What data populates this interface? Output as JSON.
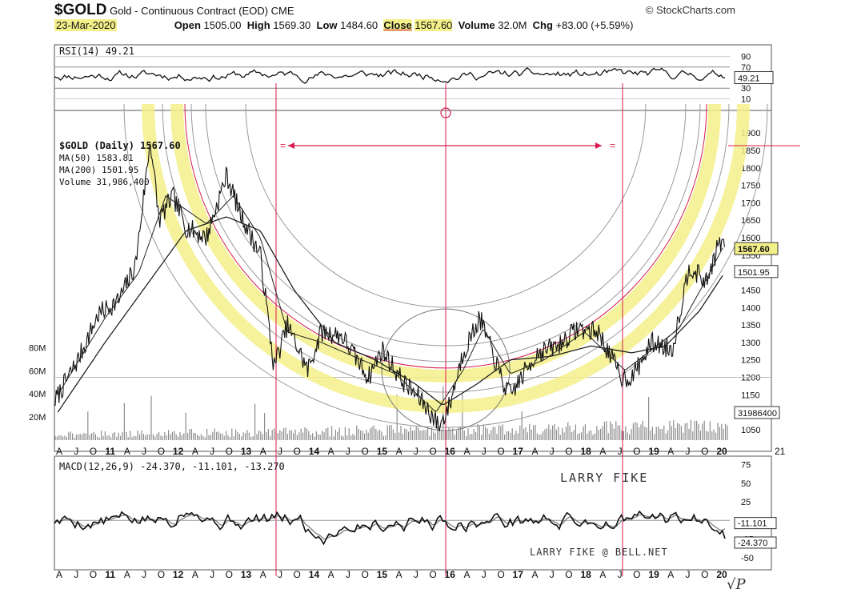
{
  "header": {
    "symbol": "$GOLD",
    "name": "Gold - Continuous Contract (EOD)",
    "exchange": "CME",
    "date": "23-Mar-2020",
    "brand": "© StockCharts.com",
    "open_label": "Open",
    "open_value": "1505.00",
    "high_label": "High",
    "high_value": "1569.30",
    "low_label": "Low",
    "low_value": "1484.60",
    "close_label": "Close",
    "close_value": "1567.60",
    "volume_label": "Volume",
    "volume_value": "32.0M",
    "chg_label": "Chg",
    "chg_value": "+83.00 (+5.59%)"
  },
  "colors": {
    "highlight": "#f3f08a",
    "price": "#111111",
    "annotation_red": "#d81b4a",
    "arc_gray": "#9a9a9a",
    "volume": "#8c8c8c"
  },
  "chart_data": [
    {
      "type": "line",
      "panel": "rsi",
      "legend": "RSI(14) 49.21",
      "last_value_label": "49.21",
      "ylim": [
        0,
        100
      ],
      "ticks": [
        "90",
        "70",
        "30",
        "10"
      ],
      "tick_values": [
        90,
        70,
        30,
        10
      ],
      "x_range": [
        2010.25,
        2020.25
      ],
      "series": [
        {
          "name": "RSI(14)",
          "last": 49.21,
          "mean": 55,
          "amplitude": 17,
          "samples": 330,
          "seed": 11
        }
      ]
    },
    {
      "type": "line",
      "panel": "price",
      "legend": [
        "$GOLD (Daily) 1567.60",
        "MA(50) 1583.81",
        "MA(200) 1501.95",
        "Volume 31,986,400"
      ],
      "last_labels": [
        "1567.60",
        "1501.95",
        "31986400"
      ],
      "ylim": [
        1020,
        1960
      ],
      "ticks": [
        "1900",
        "1850",
        "1800",
        "1750",
        "1700",
        "1650",
        "1600",
        "1550",
        "1500",
        "1450",
        "1400",
        "1350",
        "1300",
        "1250",
        "1200",
        "1150",
        "1100",
        "1050"
      ],
      "tick_values": [
        1900,
        1850,
        1800,
        1750,
        1700,
        1650,
        1600,
        1550,
        1500,
        1450,
        1400,
        1350,
        1300,
        1250,
        1200,
        1150,
        1100,
        1050
      ],
      "volume_ticks": [
        "80M",
        "60M",
        "40M",
        "20M"
      ],
      "volume_tick_values": [
        80,
        60,
        40,
        20
      ],
      "x_range": [
        2010.25,
        2020.25
      ],
      "x_ticks": [
        "A",
        "J",
        "O",
        "11",
        "A",
        "J",
        "O",
        "12",
        "A",
        "J",
        "O",
        "13",
        "A",
        "J",
        "O",
        "14",
        "A",
        "J",
        "O",
        "15",
        "A",
        "J",
        "O",
        "16",
        "A",
        "J",
        "O",
        "17",
        "A",
        "J",
        "O",
        "18",
        "A",
        "J",
        "O",
        "19",
        "A",
        "J",
        "O",
        "20"
      ],
      "series": [
        {
          "name": "$GOLD",
          "x": [
            2010.25,
            2010.6,
            2010.9,
            2011.2,
            2011.45,
            2011.67,
            2011.8,
            2012.0,
            2012.2,
            2012.5,
            2012.8,
            2013.0,
            2013.3,
            2013.5,
            2013.7,
            2014.0,
            2014.2,
            2014.5,
            2014.9,
            2015.1,
            2015.4,
            2015.7,
            2015.95,
            2016.1,
            2016.3,
            2016.55,
            2016.9,
            2017.0,
            2017.4,
            2017.7,
            2018.0,
            2018.3,
            2018.65,
            2018.8,
            2019.1,
            2019.4,
            2019.65,
            2019.9,
            2020.1,
            2020.18
          ],
          "y": [
            1130,
            1250,
            1380,
            1420,
            1520,
            1880,
            1650,
            1720,
            1630,
            1600,
            1780,
            1670,
            1550,
            1230,
            1350,
            1220,
            1330,
            1320,
            1200,
            1280,
            1190,
            1130,
            1060,
            1120,
            1270,
            1370,
            1180,
            1150,
            1270,
            1290,
            1340,
            1330,
            1200,
            1200,
            1300,
            1280,
            1520,
            1470,
            1590,
            1567.6
          ]
        },
        {
          "name": "MA(50)",
          "x": [
            2010.3,
            2011.0,
            2011.5,
            2011.9,
            2012.5,
            2012.9,
            2013.3,
            2013.7,
            2014.2,
            2014.8,
            2015.3,
            2015.9,
            2016.3,
            2016.6,
            2017.0,
            2017.5,
            2018.1,
            2018.7,
            2019.1,
            2019.5,
            2019.9,
            2020.18
          ],
          "y": [
            1150,
            1370,
            1500,
            1720,
            1640,
            1720,
            1600,
            1330,
            1300,
            1250,
            1210,
            1100,
            1220,
            1340,
            1210,
            1250,
            1330,
            1220,
            1280,
            1340,
            1480,
            1583.81
          ]
        },
        {
          "name": "MA(200)",
          "x": [
            2010.3,
            2011.0,
            2011.6,
            2012.2,
            2012.8,
            2013.3,
            2013.8,
            2014.4,
            2015.0,
            2015.6,
            2016.0,
            2016.5,
            2017.0,
            2017.6,
            2018.2,
            2018.8,
            2019.3,
            2019.8,
            2020.18
          ],
          "y": [
            1100,
            1300,
            1460,
            1620,
            1660,
            1620,
            1450,
            1300,
            1250,
            1180,
            1120,
            1180,
            1250,
            1260,
            1290,
            1270,
            1290,
            1390,
            1501.95
          ]
        }
      ]
    },
    {
      "type": "line",
      "panel": "macd",
      "legend": "MACD(12,26,9) -24.370, -11.101, -13.270",
      "last_labels": [
        "-11.101",
        "-24.370"
      ],
      "ylim": [
        -62,
        82
      ],
      "ticks": [
        "75",
        "50",
        "25",
        "0",
        "-25",
        "-50"
      ],
      "tick_values": [
        75,
        50,
        25,
        0,
        -25,
        -50
      ],
      "x_range": [
        2010.25,
        2020.25
      ],
      "x_ticks": [
        "A",
        "J",
        "O",
        "11",
        "A",
        "J",
        "O",
        "12",
        "A",
        "J",
        "O",
        "13",
        "A",
        "J",
        "O",
        "14",
        "A",
        "J",
        "O",
        "15",
        "A",
        "J",
        "O",
        "16",
        "A",
        "J",
        "O",
        "17",
        "A",
        "J",
        "O",
        "18",
        "A",
        "J",
        "O",
        "19",
        "A",
        "J",
        "O",
        "20"
      ],
      "series": [
        {
          "name": "MACD",
          "last": -24.37,
          "samples": 260,
          "seed": 5
        },
        {
          "name": "Signal",
          "last": -11.101,
          "samples": 260,
          "seed": 5
        }
      ]
    }
  ],
  "annotations": {
    "marker_left": "=",
    "marker_right": "=",
    "far_right_label": "21",
    "signature_1": "LARRY FIKE",
    "signature_2": "LARRY FIKE @ BELL.NET",
    "initials": "√P"
  }
}
